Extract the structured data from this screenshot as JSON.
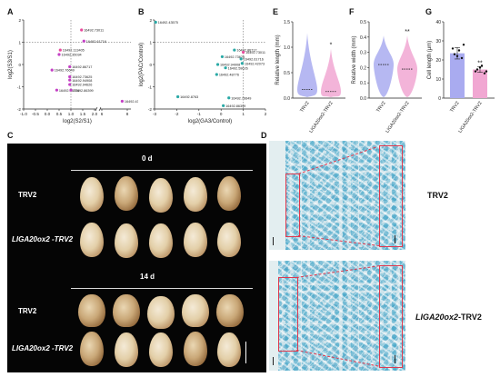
{
  "panels": {
    "a": {
      "letter": "A"
    },
    "b": {
      "letter": "B"
    },
    "c": {
      "letter": "C"
    },
    "d": {
      "letter": "D"
    },
    "e": {
      "letter": "E"
    },
    "f": {
      "letter": "F"
    },
    "g": {
      "letter": "G"
    }
  },
  "colors": {
    "trv2": "#a9abf0",
    "ox": "#f1a7d2",
    "pink_point": "#e94a9c",
    "magenta_point": "#c43fc5",
    "teal_point": "#2aa9a6",
    "red_box": "#e0384d",
    "cell_stain": "#3fa6c8"
  },
  "chart_data": [
    {
      "panel": "A",
      "type": "scatter",
      "xlabel": "log2(S2/S1)",
      "ylabel": "log2(S3/S1)",
      "xticks": [
        "-1.0",
        "-0.5",
        "0.0",
        "0.5",
        "1.0",
        "1.5",
        "2.0",
        "6",
        "8"
      ],
      "yticks": [
        "-2",
        "-1",
        "0",
        "1",
        "2"
      ],
      "axis_break": true,
      "points": [
        {
          "label": "16492.73011",
          "x": 1.45,
          "y": 1.55,
          "color": "#e94a9c"
        },
        {
          "label": "16492.61716",
          "x": 1.55,
          "y": 1.05,
          "color": "#c43fc5"
        },
        {
          "label": "16492.113405",
          "x": 0.55,
          "y": 0.65,
          "color": "#e94a9c"
        },
        {
          "label": "16492.35034",
          "x": 0.5,
          "y": 0.45,
          "color": "#c43fc5"
        },
        {
          "label": "16492.86717",
          "x": 0.95,
          "y": -0.1,
          "color": "#c43fc5"
        },
        {
          "label": "16492.76649",
          "x": 0.2,
          "y": -0.25,
          "color": "#c43fc5"
        },
        {
          "label": "16492.73625",
          "x": 0.95,
          "y": -0.55,
          "color": "#c43fc5"
        },
        {
          "label": "16492.94908",
          "x": 0.95,
          "y": -0.7,
          "color": "#c43fc5"
        },
        {
          "label": "16492.94626",
          "x": 0.95,
          "y": -0.9,
          "color": "#c43fc5"
        },
        {
          "label": "16492.48776",
          "x": 0.4,
          "y": -1.15,
          "color": "#c43fc5"
        },
        {
          "label": "16492.86399",
          "x": 1.0,
          "y": -1.15,
          "color": "#c43fc5"
        },
        {
          "label": "16492.43575",
          "x": 7.6,
          "y": -1.65,
          "color": "#c43fc5"
        }
      ]
    },
    {
      "panel": "B",
      "type": "scatter",
      "xlabel": "log2(GA3/Control)",
      "ylabel": "log2(PAC/Control)",
      "xticks": [
        "-3",
        "-2",
        "-1",
        "0",
        "1",
        "2"
      ],
      "yticks": [
        "-2",
        "-1",
        "0",
        "1",
        "2"
      ],
      "points": [
        {
          "label": "16492.43575",
          "x": -2.95,
          "y": 1.9,
          "color": "#2aa9a6"
        },
        {
          "label": "16492.86717",
          "x": 0.6,
          "y": 0.65,
          "color": "#2aa9a6"
        },
        {
          "label": "16492.73011",
          "x": 1.0,
          "y": 0.55,
          "color": "#e94a9c"
        },
        {
          "label": "16492.73625",
          "x": 0.05,
          "y": 0.35,
          "color": "#2aa9a6"
        },
        {
          "label": "16492.61716",
          "x": 0.9,
          "y": 0.25,
          "color": "#2aa9a6"
        },
        {
          "label": "16492.94908",
          "x": -0.15,
          "y": 0.0,
          "color": "#2aa9a6"
        },
        {
          "label": "16492.42073",
          "x": 0.95,
          "y": 0.05,
          "color": "#2aa9a6"
        },
        {
          "label": "16492.59626",
          "x": 0.2,
          "y": -0.15,
          "color": "#2aa9a6"
        },
        {
          "label": "16492.48776",
          "x": -0.2,
          "y": -0.45,
          "color": "#2aa9a6"
        },
        {
          "label": "16492.8763",
          "x": -1.95,
          "y": -1.45,
          "color": "#2aa9a6"
        },
        {
          "label": "16492.76649",
          "x": 0.35,
          "y": -1.5,
          "color": "#2aa9a6"
        },
        {
          "label": "16492.86399",
          "x": 0.1,
          "y": -1.85,
          "color": "#2aa9a6"
        }
      ]
    },
    {
      "panel": "E",
      "type": "violin",
      "ylabel": "Relative length (mm)",
      "yticks": [
        "0.0",
        "0.5",
        "1.0",
        "1.5"
      ],
      "ylim": [
        0,
        1.5
      ],
      "categories": [
        "TRV2",
        "LIGA20ox2-TRV2"
      ],
      "medians": [
        0.17,
        0.13
      ],
      "maxima": [
        1.28,
        0.97
      ],
      "significance": [
        "",
        "*"
      ]
    },
    {
      "panel": "F",
      "type": "violin",
      "ylabel": "Relative width (mm)",
      "yticks": [
        "0.0",
        "0.1",
        "0.2",
        "0.3",
        "0.4",
        "0.5"
      ],
      "ylim": [
        0,
        0.5
      ],
      "categories": [
        "TRV2",
        "LIGA20ox2-TRV2"
      ],
      "medians": [
        0.22,
        0.19
      ],
      "maxima": [
        0.41,
        0.41
      ],
      "significance": [
        "",
        "**"
      ]
    },
    {
      "panel": "G",
      "type": "bar",
      "ylabel": "Cell length (μm)",
      "yticks": [
        "0",
        "10",
        "20",
        "30",
        "40"
      ],
      "ylim": [
        0,
        40
      ],
      "categories": [
        "TRV2",
        "LIGA20ox2-TRV2"
      ],
      "values": [
        23.5,
        15.0
      ],
      "errors": [
        3.0,
        1.5
      ],
      "points": [
        [
          26,
          22,
          21,
          23,
          25,
          28
        ],
        [
          14,
          16,
          13,
          15,
          17,
          14
        ]
      ],
      "significance": [
        "",
        "**"
      ]
    }
  ],
  "photo": {
    "time_0": "0 d",
    "time_14": "14 d",
    "row_trv2_1": "TRV2",
    "row_ox_1": "LIGA20ox2 -TRV2",
    "row_trv2_2": "TRV2",
    "row_ox_2": "LIGA20ox2 -TRV2"
  },
  "micro": {
    "label_top": "TRV2",
    "label_bottom_gene": "LIGA20ox2",
    "label_bottom_suffix": "-TRV2"
  }
}
